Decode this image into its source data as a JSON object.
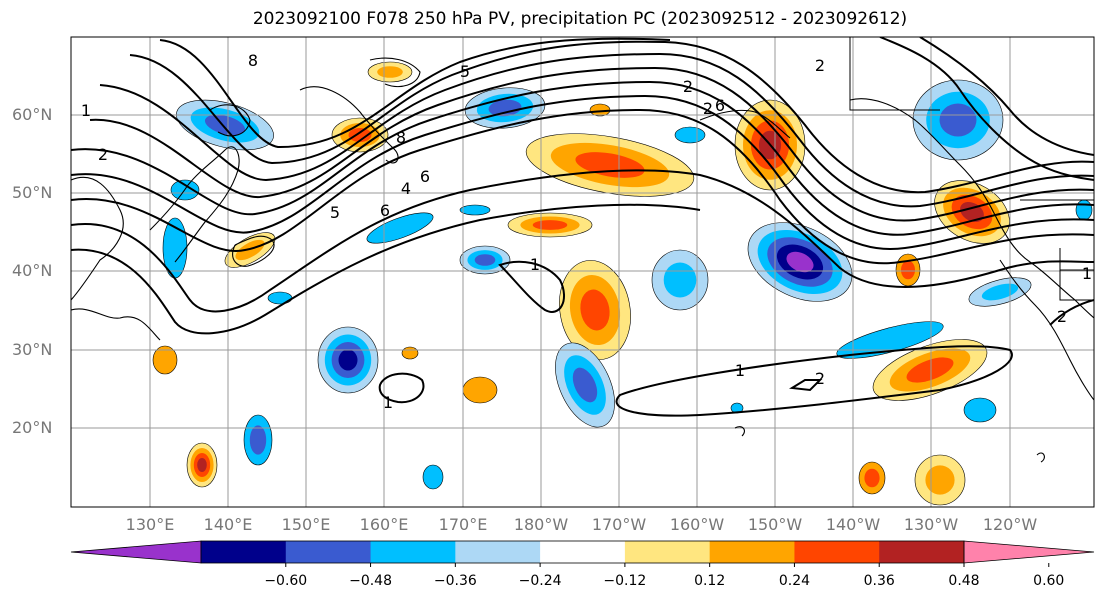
{
  "title": "2023092100 F078 250 hPa PV, precipitation PC (2023092512 - 2023092612)",
  "lat_labels": [
    "60°N",
    "50°N",
    "40°N",
    "30°N",
    "20°N"
  ],
  "lon_labels": [
    "130°E",
    "140°E",
    "150°E",
    "160°E",
    "170°E",
    "180°W",
    "170°W",
    "160°W",
    "150°W",
    "140°W",
    "130°W",
    "120°W"
  ],
  "contour_labels": [
    "8",
    "5",
    "2",
    "1",
    "2",
    "6",
    "2",
    "8",
    "5",
    "6",
    "4",
    "2",
    "6",
    "1",
    "1",
    "1",
    "2",
    "1",
    "2"
  ],
  "colorbar": {
    "ticks": [
      "−0.60",
      "−0.48",
      "−0.36",
      "−0.24",
      "−0.12",
      "0.12",
      "0.24",
      "0.36",
      "0.48",
      "0.60"
    ],
    "colors": [
      "#9932cc",
      "#00008b",
      "#3a5bd0",
      "#00bfff",
      "#add8f5",
      "#ffffff",
      "#ffe680",
      "#ffa500",
      "#ff4500",
      "#b22222",
      "#ff82ab"
    ]
  },
  "palette": {
    "blue1": "#add8f5",
    "blue2": "#00bfff",
    "blue3": "#3a5bd0",
    "blue4": "#00008b",
    "blue5": "#9932cc",
    "red1": "#ffe680",
    "red2": "#ffa500",
    "red3": "#ff4500",
    "red4": "#b22222"
  }
}
